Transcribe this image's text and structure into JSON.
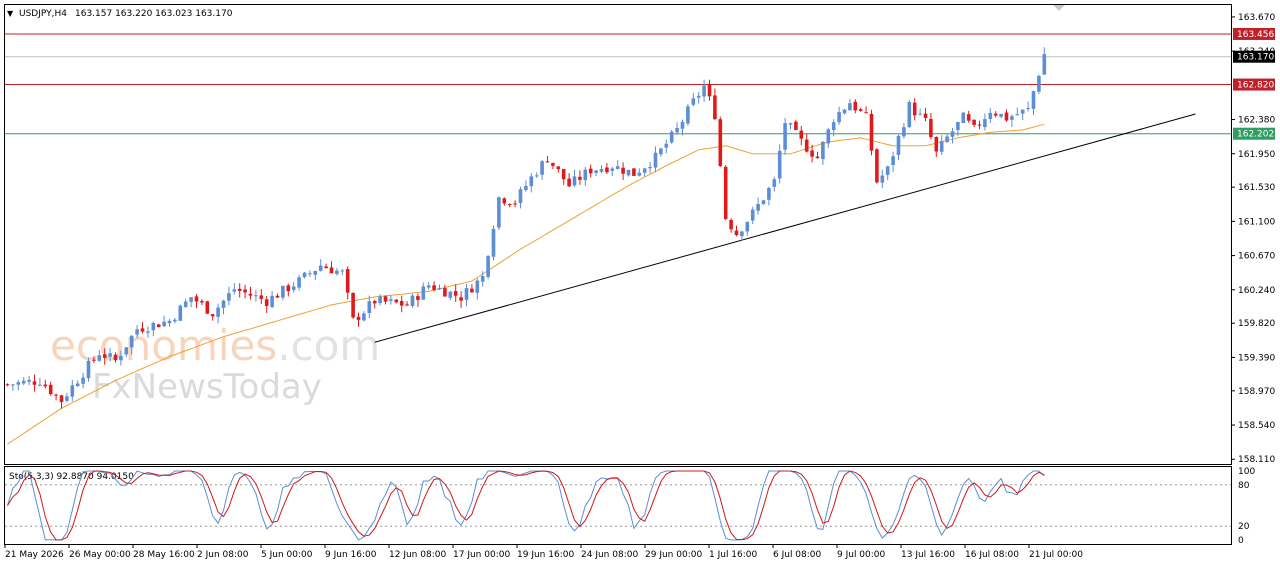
{
  "header": {
    "symbol": "USDJPY,H4",
    "ohlc": "163.157 163.220 163.023 163.170"
  },
  "indicator_label": "Sto(5,3,3) 92.8870 94.0150",
  "watermark": {
    "part1": "economies",
    "part2": ".com",
    "line2": "FxNewsToday"
  },
  "colors": {
    "bull": "#5b8ed6",
    "bear": "#e0191b",
    "ma": "#f0a030",
    "resistance": "#c0202a",
    "support": "#2e9e62",
    "current": "#bfbfbf",
    "trendline": "#000000",
    "stoch_main": "#5b8ed6",
    "stoch_signal": "#d01818"
  },
  "chart_data": [
    {
      "type": "candlestick",
      "title": "USDJPY,H4",
      "y_axis_labels": [
        "163.670",
        "163.240",
        "162.380",
        "161.950",
        "161.530",
        "161.100",
        "160.670",
        "160.240",
        "159.820",
        "159.390",
        "158.970",
        "158.540",
        "158.110"
      ],
      "x_axis_labels": [
        "21 May 2026",
        "26 May 00:00",
        "28 May 16:00",
        "2 Jun 08:00",
        "5 Jun 00:00",
        "9 Jun 16:00",
        "12 Jun 08:00",
        "17 Jun 00:00",
        "19 Jun 16:00",
        "24 Jun 08:00",
        "29 Jun 00:00",
        "1 Jul 16:00",
        "6 Jul 08:00",
        "9 Jul 00:00",
        "13 Jul 16:00",
        "16 Jul 08:00",
        "21 Jul 00:00"
      ],
      "ylim": [
        158.05,
        163.82
      ],
      "grid": false,
      "price_path": [
        [
          0,
          159.05
        ],
        [
          6,
          159.1
        ],
        [
          10,
          158.85
        ],
        [
          14,
          159.2
        ],
        [
          17,
          159.45
        ],
        [
          20,
          159.35
        ],
        [
          24,
          159.75
        ],
        [
          30,
          159.85
        ],
        [
          34,
          160.15
        ],
        [
          38,
          159.95
        ],
        [
          42,
          160.25
        ],
        [
          48,
          160.1
        ],
        [
          54,
          160.35
        ],
        [
          58,
          160.55
        ],
        [
          62,
          160.45
        ],
        [
          64,
          159.85
        ],
        [
          68,
          160.1
        ],
        [
          74,
          160.05
        ],
        [
          78,
          160.3
        ],
        [
          84,
          160.15
        ],
        [
          88,
          160.4
        ],
        [
          91,
          161.4
        ],
        [
          94,
          161.35
        ],
        [
          97,
          161.65
        ],
        [
          100,
          161.9
        ],
        [
          104,
          161.55
        ],
        [
          108,
          161.75
        ],
        [
          112,
          161.8
        ],
        [
          116,
          161.7
        ],
        [
          120,
          161.9
        ],
        [
          124,
          162.25
        ],
        [
          127,
          162.6
        ],
        [
          129,
          162.8
        ],
        [
          131,
          162.45
        ],
        [
          133,
          161.15
        ],
        [
          135,
          160.95
        ],
        [
          138,
          161.2
        ],
        [
          142,
          161.6
        ],
        [
          144,
          162.35
        ],
        [
          147,
          162.1
        ],
        [
          150,
          161.9
        ],
        [
          153,
          162.4
        ],
        [
          156,
          162.6
        ],
        [
          159,
          162.4
        ],
        [
          161,
          161.6
        ],
        [
          163,
          161.75
        ],
        [
          165,
          162.15
        ],
        [
          167,
          162.55
        ],
        [
          170,
          162.35
        ],
        [
          172,
          161.95
        ],
        [
          174,
          162.15
        ],
        [
          177,
          162.4
        ],
        [
          179,
          162.25
        ],
        [
          182,
          162.5
        ],
        [
          185,
          162.4
        ],
        [
          189,
          162.5
        ],
        [
          192,
          163.2
        ]
      ],
      "series": [
        {
          "name": "MA",
          "type": "line",
          "points": [
            [
              0,
              158.3
            ],
            [
              10,
              158.75
            ],
            [
              20,
              159.1
            ],
            [
              30,
              159.4
            ],
            [
              40,
              159.65
            ],
            [
              50,
              159.85
            ],
            [
              60,
              160.05
            ],
            [
              68,
              160.15
            ],
            [
              78,
              160.22
            ],
            [
              86,
              160.35
            ],
            [
              95,
              160.75
            ],
            [
              105,
              161.15
            ],
            [
              115,
              161.55
            ],
            [
              122,
              161.8
            ],
            [
              128,
              162.0
            ],
            [
              133,
              162.05
            ],
            [
              138,
              161.95
            ],
            [
              145,
              161.95
            ],
            [
              152,
              162.1
            ],
            [
              158,
              162.15
            ],
            [
              164,
              162.05
            ],
            [
              170,
              162.05
            ],
            [
              176,
              162.15
            ],
            [
              182,
              162.22
            ],
            [
              188,
              162.25
            ],
            [
              192,
              162.32
            ]
          ]
        }
      ],
      "levels": [
        {
          "value": 163.456,
          "label": "163.456",
          "kind": "resistance"
        },
        {
          "value": 163.17,
          "label": "163.170",
          "kind": "current"
        },
        {
          "value": 162.82,
          "label": "162.820",
          "kind": "resistance"
        },
        {
          "value": 162.202,
          "label": "162.202",
          "kind": "support"
        }
      ],
      "trendline": {
        "from": [
          68,
          159.58
        ],
        "to": [
          220,
          162.45
        ]
      }
    },
    {
      "type": "line",
      "title": "Sto(5,3,3)",
      "y_axis_labels": [
        "100",
        "80",
        "20",
        "0"
      ],
      "ylim": [
        0,
        100
      ],
      "levels": [
        80,
        20
      ],
      "main_last": 92.887,
      "signal_last": 94.015
    }
  ]
}
